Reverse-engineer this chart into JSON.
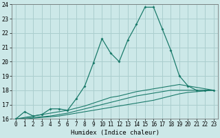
{
  "xlabel": "Humidex (Indice chaleur)",
  "background_color": "#cce8e8",
  "grid_color": "#aacece",
  "line_color": "#1a7a6a",
  "xlim": [
    -0.5,
    23.5
  ],
  "ylim": [
    16,
    24
  ],
  "yticks": [
    16,
    17,
    18,
    19,
    20,
    21,
    22,
    23,
    24
  ],
  "xticks": [
    0,
    1,
    2,
    3,
    4,
    5,
    6,
    7,
    8,
    9,
    10,
    11,
    12,
    13,
    14,
    15,
    16,
    17,
    18,
    19,
    20,
    21,
    22,
    23
  ],
  "series": [
    {
      "x": [
        0,
        1,
        2,
        3,
        4,
        5,
        6,
        7,
        8,
        9,
        10,
        11,
        12,
        13,
        14,
        15,
        16,
        17,
        18,
        19,
        20,
        21,
        22,
        23
      ],
      "y": [
        16.0,
        16.5,
        16.2,
        16.3,
        16.7,
        16.7,
        16.6,
        17.4,
        18.3,
        19.9,
        21.6,
        20.6,
        20.0,
        21.5,
        22.6,
        23.8,
        23.8,
        22.3,
        20.8,
        19.0,
        18.3,
        18.0,
        18.0,
        18.0
      ],
      "marker": true
    },
    {
      "x": [
        0,
        1,
        2,
        3,
        4,
        5,
        6,
        7,
        8,
        9,
        10,
        11,
        12,
        13,
        14,
        15,
        16,
        17,
        18,
        19,
        20,
        21,
        22,
        23
      ],
      "y": [
        16.0,
        16.1,
        16.2,
        16.3,
        16.4,
        16.5,
        16.6,
        16.75,
        16.9,
        17.1,
        17.3,
        17.5,
        17.6,
        17.75,
        17.9,
        18.0,
        18.1,
        18.2,
        18.3,
        18.4,
        18.3,
        18.2,
        18.1,
        18.0
      ],
      "marker": false
    },
    {
      "x": [
        0,
        1,
        2,
        3,
        4,
        5,
        6,
        7,
        8,
        9,
        10,
        11,
        12,
        13,
        14,
        15,
        16,
        17,
        18,
        19,
        20,
        21,
        22,
        23
      ],
      "y": [
        16.0,
        16.05,
        16.1,
        16.15,
        16.2,
        16.3,
        16.4,
        16.55,
        16.7,
        16.85,
        17.0,
        17.15,
        17.3,
        17.45,
        17.6,
        17.7,
        17.8,
        17.9,
        18.0,
        18.0,
        18.0,
        18.0,
        18.0,
        18.0
      ],
      "marker": false
    },
    {
      "x": [
        0,
        1,
        2,
        3,
        4,
        5,
        6,
        7,
        8,
        9,
        10,
        11,
        12,
        13,
        14,
        15,
        16,
        17,
        18,
        19,
        20,
        21,
        22,
        23
      ],
      "y": [
        16.0,
        16.0,
        16.05,
        16.1,
        16.15,
        16.2,
        16.3,
        16.4,
        16.5,
        16.6,
        16.7,
        16.8,
        16.9,
        17.0,
        17.1,
        17.2,
        17.3,
        17.45,
        17.6,
        17.75,
        17.85,
        17.9,
        17.95,
        18.0
      ],
      "marker": false
    }
  ]
}
